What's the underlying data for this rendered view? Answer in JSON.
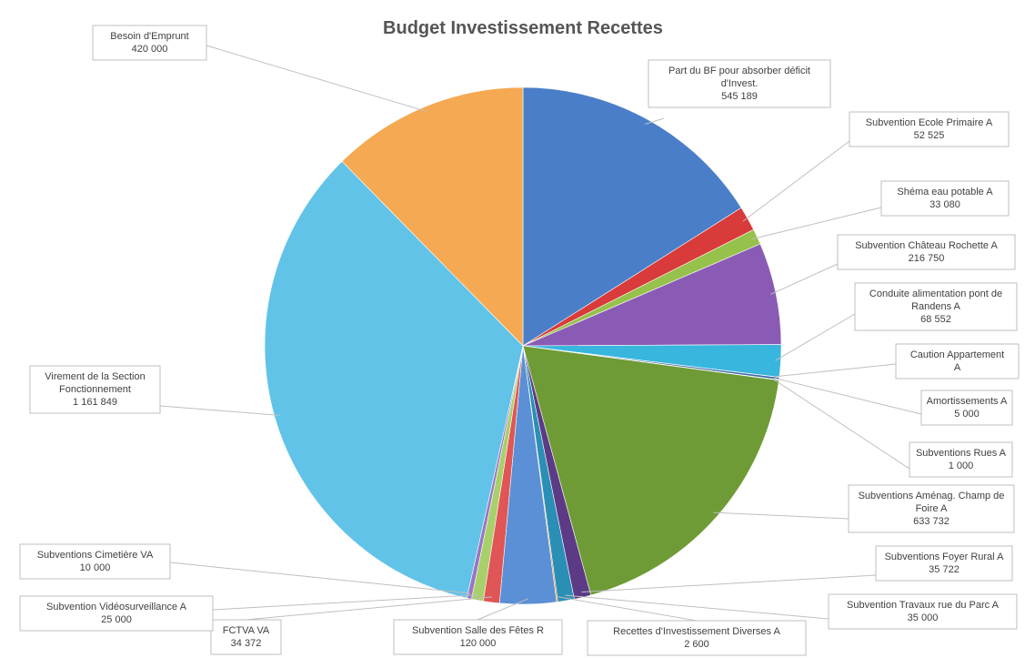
{
  "chart_data": {
    "type": "pie",
    "title": "Budget Investissement Recettes",
    "slices": [
      {
        "label": "Part du BF pour absorber déficit d'Invest.",
        "value_text": "545 189",
        "value": 545189,
        "color": "#4a7ec9"
      },
      {
        "label": "Subvention Ecole Primaire A",
        "value_text": "52 525",
        "value": 52525,
        "color": "#d93a3a"
      },
      {
        "label": "Shéma eau potable A",
        "value_text": "33 080",
        "value": 33080,
        "color": "#96c14b"
      },
      {
        "label": "Subvention Château Rochette A",
        "value_text": "216 750",
        "value": 216750,
        "color": "#8a5bb5"
      },
      {
        "label": "Conduite alimentation pont de Randens A",
        "value_text": "68 552",
        "value": 68552,
        "color": "#38b6de"
      },
      {
        "label": "Caution Appartement A",
        "value_text": "",
        "value": 500,
        "color": "#f39c34"
      },
      {
        "label": "Amortissements A",
        "value_text": "5 000",
        "value": 5000,
        "color": "#3f6aa8"
      },
      {
        "label": "Subventions Rues A",
        "value_text": "1 000",
        "value": 1000,
        "color": "#b23030"
      },
      {
        "label": "Subventions Aménag. Champ de Foire A",
        "value_text": "633 732",
        "value": 633732,
        "color": "#6e9b36"
      },
      {
        "label": "Subventions Foyer Rural A",
        "value_text": "35 722",
        "value": 35722,
        "color": "#5c3a85"
      },
      {
        "label": "Subvention Travaux rue du Parc A",
        "value_text": "35 000",
        "value": 35000,
        "color": "#2b8fb5"
      },
      {
        "label": "Recettes d'Investissement Diverses A",
        "value_text": "2 600",
        "value": 2600,
        "color": "#d9771f"
      },
      {
        "label": "Subvention Salle des Fêtes R",
        "value_text": "120 000",
        "value": 120000,
        "color": "#5b8fd6"
      },
      {
        "label": "FCTVA VA",
        "value_text": "34 372",
        "value": 34372,
        "color": "#e05555"
      },
      {
        "label": "Subvention Vidéosurveillance A",
        "value_text": "25 000",
        "value": 25000,
        "color": "#a8d06a"
      },
      {
        "label": "Subventions Cimetière VA",
        "value_text": "10 000",
        "value": 10000,
        "color": "#9b75c4"
      },
      {
        "label": "Virement de la Section Fonctionnement",
        "value_text": "1 161 849",
        "value": 1161849,
        "color": "#62c3e8"
      },
      {
        "label": "Besoin d'Emprunt",
        "value_text": "420 000",
        "value": 420000,
        "color": "#f5a952"
      }
    ]
  }
}
